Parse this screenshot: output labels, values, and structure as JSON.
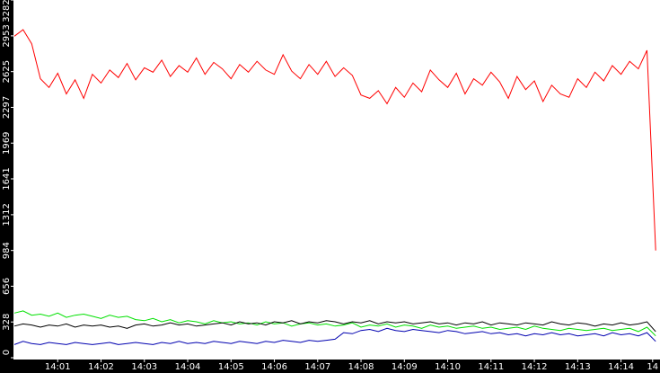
{
  "chart_data": {
    "type": "line",
    "x": [
      0,
      0.2,
      0.4,
      0.6,
      0.8,
      1,
      1.2,
      1.4,
      1.6,
      1.8,
      2,
      2.2,
      2.4,
      2.6,
      2.8,
      3,
      3.2,
      3.4,
      3.6,
      3.8,
      4,
      4.2,
      4.4,
      4.6,
      4.8,
      5,
      5.2,
      5.4,
      5.6,
      5.8,
      6,
      6.2,
      6.4,
      6.6,
      6.8,
      7,
      7.2,
      7.4,
      7.6,
      7.8,
      8,
      8.2,
      8.4,
      8.6,
      8.8,
      9,
      9.2,
      9.4,
      9.6,
      9.8,
      10,
      10.2,
      10.4,
      10.6,
      10.8,
      11,
      11.2,
      11.4,
      11.6,
      11.8,
      12,
      12.2,
      12.4,
      12.6,
      12.8,
      13,
      13.2,
      13.4,
      13.6,
      13.8,
      14,
      14.2,
      14.4,
      14.6,
      14.8
    ],
    "series": [
      {
        "color": "#ff0000",
        "values": [
          2950,
          3010,
          2880,
          2560,
          2480,
          2610,
          2420,
          2550,
          2380,
          2600,
          2520,
          2640,
          2570,
          2700,
          2550,
          2660,
          2620,
          2730,
          2580,
          2680,
          2620,
          2750,
          2600,
          2710,
          2650,
          2560,
          2690,
          2620,
          2720,
          2640,
          2600,
          2780,
          2630,
          2560,
          2690,
          2600,
          2720,
          2580,
          2660,
          2590,
          2410,
          2380,
          2450,
          2330,
          2480,
          2390,
          2520,
          2440,
          2640,
          2550,
          2480,
          2610,
          2420,
          2560,
          2500,
          2620,
          2530,
          2380,
          2580,
          2460,
          2540,
          2350,
          2500,
          2420,
          2390,
          2560,
          2480,
          2620,
          2540,
          2680,
          2600,
          2720,
          2650,
          2820,
          984
        ]
      },
      {
        "color": "#00e000",
        "values": [
          410,
          430,
          390,
          400,
          380,
          410,
          370,
          390,
          400,
          380,
          360,
          390,
          370,
          380,
          350,
          340,
          360,
          330,
          350,
          320,
          340,
          330,
          310,
          340,
          320,
          330,
          310,
          320,
          300,
          330,
          310,
          320,
          290,
          310,
          320,
          300,
          310,
          290,
          300,
          320,
          280,
          300,
          290,
          310,
          280,
          300,
          290,
          270,
          300,
          280,
          290,
          270,
          280,
          290,
          270,
          280,
          260,
          270,
          280,
          260,
          290,
          270,
          260,
          250,
          270,
          260,
          250,
          260,
          270,
          250,
          260,
          270,
          240,
          280,
          200
        ]
      },
      {
        "color": "#000000",
        "values": [
          290,
          310,
          300,
          280,
          300,
          290,
          310,
          280,
          300,
          290,
          300,
          280,
          290,
          270,
          300,
          310,
          290,
          300,
          320,
          300,
          310,
          290,
          300,
          310,
          320,
          300,
          330,
          310,
          320,
          300,
          330,
          320,
          340,
          310,
          330,
          320,
          340,
          330,
          310,
          330,
          320,
          340,
          310,
          330,
          320,
          330,
          310,
          320,
          330,
          310,
          320,
          300,
          320,
          310,
          330,
          300,
          320,
          310,
          300,
          320,
          310,
          300,
          330,
          310,
          300,
          320,
          310,
          290,
          310,
          300,
          320,
          300,
          310,
          330,
          240
        ]
      },
      {
        "color": "#0000b0",
        "values": [
          120,
          150,
          130,
          120,
          140,
          130,
          120,
          140,
          130,
          120,
          130,
          140,
          120,
          130,
          140,
          130,
          120,
          140,
          130,
          150,
          130,
          140,
          130,
          150,
          140,
          130,
          150,
          140,
          130,
          150,
          140,
          160,
          150,
          140,
          160,
          150,
          160,
          170,
          230,
          220,
          250,
          260,
          240,
          270,
          250,
          240,
          260,
          250,
          240,
          230,
          250,
          240,
          220,
          230,
          240,
          220,
          230,
          210,
          220,
          200,
          220,
          210,
          230,
          210,
          220,
          200,
          210,
          220,
          200,
          230,
          210,
          220,
          200,
          230,
          150
        ]
      }
    ],
    "xlim": [
      0,
      14.9
    ],
    "xticks": [
      {
        "value": 1,
        "label": "14:01"
      },
      {
        "value": 2,
        "label": "14:02"
      },
      {
        "value": 3,
        "label": "14:03"
      },
      {
        "value": 4,
        "label": "14:04"
      },
      {
        "value": 5,
        "label": "14:05"
      },
      {
        "value": 6,
        "label": "14:06"
      },
      {
        "value": 7,
        "label": "14:07"
      },
      {
        "value": 8,
        "label": "14:08"
      },
      {
        "value": 9,
        "label": "14:09"
      },
      {
        "value": 10,
        "label": "14:10"
      },
      {
        "value": 11,
        "label": "14:11"
      },
      {
        "value": 12,
        "label": "14:12"
      },
      {
        "value": 13,
        "label": "14:13"
      },
      {
        "value": 14,
        "label": "14:14"
      },
      {
        "value": 14.73,
        "label": "14"
      }
    ],
    "ylim": [
      0,
      3282
    ],
    "yticks": [
      0,
      328,
      656,
      984,
      1312,
      1641,
      1969,
      2297,
      2625,
      2953,
      3282
    ]
  }
}
